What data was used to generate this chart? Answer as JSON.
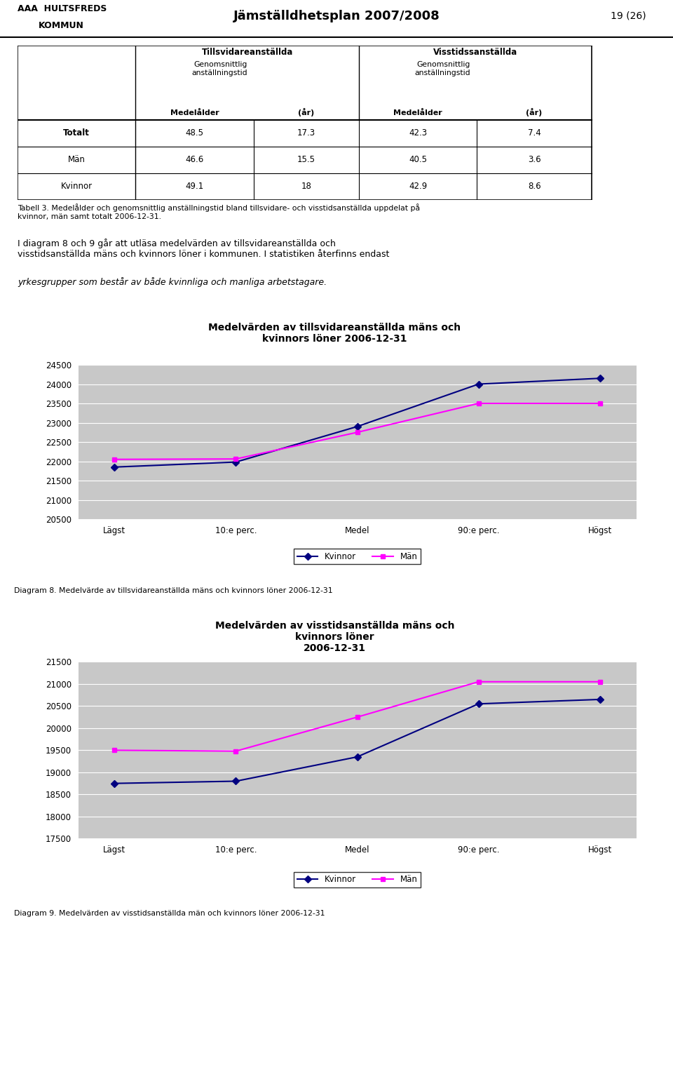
{
  "page_header": "Jämställdhetsplan 2007/2008",
  "page_number": "19 (26)",
  "table_data": {
    "rows": [
      "Kvinnor",
      "Män",
      "Totalt"
    ],
    "bold_rows": [
      false,
      false,
      true
    ],
    "tillsvidare_medelalder": [
      49.1,
      46.6,
      48.5
    ],
    "tillsvidare_ar": [
      18,
      15.5,
      17.3
    ],
    "visstids_medelalder": [
      42.9,
      40.5,
      42.3
    ],
    "visstids_ar": [
      8.6,
      3.6,
      7.4
    ]
  },
  "table_caption": "Tabell 3. Medelålder och genomsnittlig anställningstid bland tillsvidare- och visstidsanställda uppdelat på\nkvinnor, män samt totalt 2006-12-31.",
  "body_text_line1": "I diagram 8 och 9 går att utläsa medelvärden av tillsvidareanställda och",
  "body_text_line2": "visstidsanställda mäns och kvinnors löner i kommunen. I statistiken återfinns endast",
  "body_text_italic": "yrkesgrupper som består av både kvinnliga och manliga arbetstagare.",
  "chart1": {
    "title": "Medelvärden av tillsvidareanställda mäns och\nkvinnors löner 2006-12-31",
    "xticklabels": [
      "Lägst",
      "10:e perc.",
      "Medel",
      "90:e perc.",
      "Högst"
    ],
    "ylim": [
      20500,
      24500
    ],
    "yticks": [
      20500,
      21000,
      21500,
      22000,
      22500,
      23000,
      23500,
      24000,
      24500
    ],
    "kvinnor_values": [
      21850,
      21980,
      22900,
      24000,
      24150
    ],
    "man_values": [
      22050,
      22060,
      22750,
      23500,
      23500
    ],
    "kvinnor_color": "#000080",
    "man_color": "#FF00FF",
    "legend_labels": [
      "Kvinnor",
      "Män"
    ],
    "bg_color": "#C8C8C8",
    "caption": "Diagram 8. Medelvärde av tillsvidareanställda mäns och kvinnors löner 2006-12-31"
  },
  "chart2": {
    "title": "Medelvärden av visstidsanställda mäns och\nkvinnors löner\n2006-12-31",
    "xticklabels": [
      "Lägst",
      "10:e perc.",
      "Medel",
      "90:e perc.",
      "Högst"
    ],
    "ylim": [
      17500,
      21500
    ],
    "yticks": [
      17500,
      18000,
      18500,
      19000,
      19500,
      20000,
      20500,
      21000,
      21500
    ],
    "kvinnor_values": [
      18750,
      18800,
      19350,
      20550,
      20650
    ],
    "man_values": [
      19500,
      19480,
      20250,
      21050,
      21050
    ],
    "kvinnor_color": "#000080",
    "man_color": "#FF00FF",
    "legend_labels": [
      "Kvinnor",
      "Män"
    ],
    "bg_color": "#C8C8C8",
    "caption": "Diagram 9. Medelvärden av visstidsanställda män och kvinnors löner 2006-12-31"
  }
}
